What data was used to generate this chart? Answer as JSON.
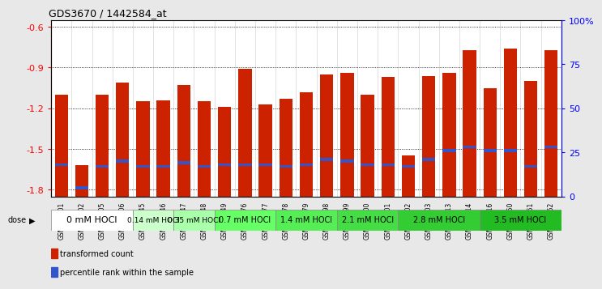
{
  "title": "GDS3670 / 1442584_at",
  "samples": [
    "GSM387601",
    "GSM387602",
    "GSM387605",
    "GSM387606",
    "GSM387645",
    "GSM387646",
    "GSM387647",
    "GSM387648",
    "GSM387649",
    "GSM387676",
    "GSM387677",
    "GSM387678",
    "GSM387679",
    "GSM387698",
    "GSM387699",
    "GSM387700",
    "GSM387701",
    "GSM387702",
    "GSM387703",
    "GSM387713",
    "GSM387714",
    "GSM387716",
    "GSM387750",
    "GSM387751",
    "GSM387752"
  ],
  "transformed_counts": [
    -1.1,
    -1.62,
    -1.1,
    -1.01,
    -1.15,
    -1.14,
    -1.03,
    -1.15,
    -1.19,
    -0.91,
    -1.17,
    -1.13,
    -1.08,
    -0.95,
    -0.94,
    -1.1,
    -0.97,
    -1.55,
    -0.96,
    -0.94,
    -0.77,
    -1.05,
    -0.76,
    -1.0,
    -0.77
  ],
  "percentile_ranks": [
    18,
    5,
    17,
    20,
    17,
    17,
    19,
    17,
    18,
    18,
    18,
    17,
    18,
    21,
    20,
    18,
    18,
    17,
    21,
    26,
    28,
    26,
    26,
    17,
    28
  ],
  "dose_groups": [
    {
      "label": "0 mM HOCl",
      "start": 0,
      "end": 4,
      "color": "#ffffff",
      "fontsize": 8
    },
    {
      "label": "0.14 mM HOCl",
      "start": 4,
      "end": 6,
      "color": "#ccffcc",
      "fontsize": 6.5
    },
    {
      "label": "0.35 mM HOCl",
      "start": 6,
      "end": 8,
      "color": "#aaffaa",
      "fontsize": 6.5
    },
    {
      "label": "0.7 mM HOCl",
      "start": 8,
      "end": 11,
      "color": "#66ff66",
      "fontsize": 7
    },
    {
      "label": "1.4 mM HOCl",
      "start": 11,
      "end": 14,
      "color": "#55ee55",
      "fontsize": 7
    },
    {
      "label": "2.1 mM HOCl",
      "start": 14,
      "end": 17,
      "color": "#44dd44",
      "fontsize": 7
    },
    {
      "label": "2.8 mM HOCl",
      "start": 17,
      "end": 21,
      "color": "#33cc33",
      "fontsize": 7
    },
    {
      "label": "3.5 mM HOCl",
      "start": 21,
      "end": 25,
      "color": "#22bb22",
      "fontsize": 7
    }
  ],
  "ylim_left": [
    -1.85,
    -0.55
  ],
  "ylim_right": [
    0,
    100
  ],
  "yticks_left": [
    -1.8,
    -1.5,
    -1.2,
    -0.9,
    -0.6
  ],
  "yticks_right": [
    0,
    25,
    50,
    75,
    100
  ],
  "bar_color": "#cc2200",
  "percentile_color": "#3355cc",
  "plot_bg": "#ffffff"
}
